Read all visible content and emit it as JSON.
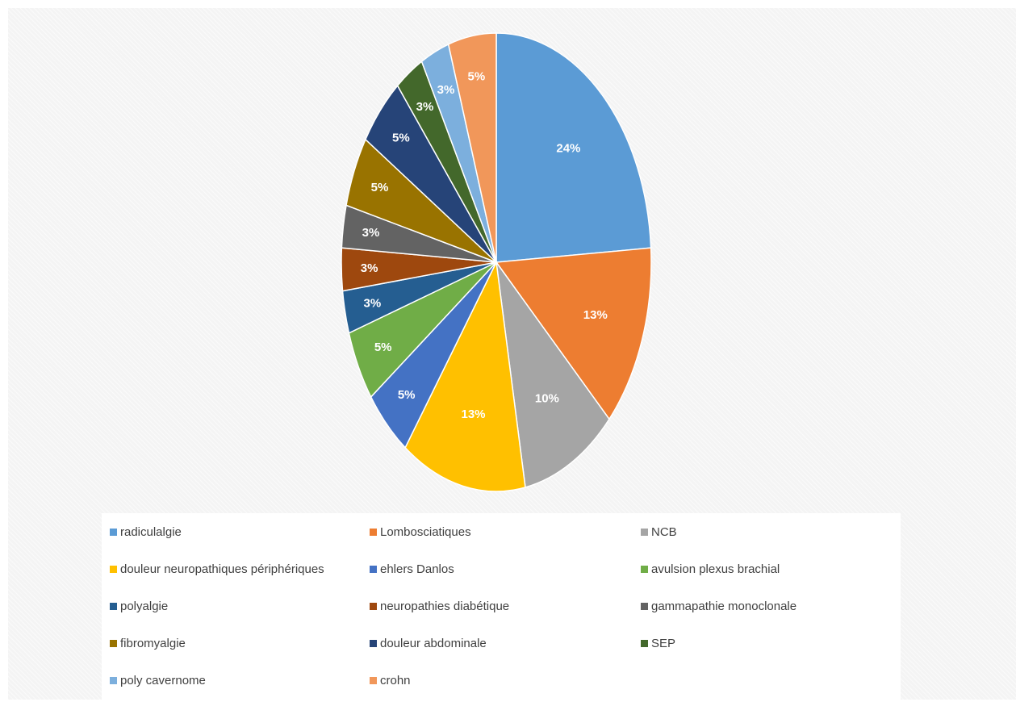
{
  "chart_data": {
    "type": "pie",
    "title": "",
    "start": "top, clockwise",
    "legend_position": "bottom",
    "slices": [
      {
        "label": "radiculalgie",
        "value": 24,
        "display": "24%",
        "color": "#5b9bd5"
      },
      {
        "label": "Lombosciatiques",
        "value": 13,
        "display": "13%",
        "color": "#ed7d31"
      },
      {
        "label": "NCB",
        "value": 10,
        "display": "10%",
        "color": "#a5a5a5"
      },
      {
        "label": "douleur  neuropathiques périphériques",
        "value": 13,
        "display": "13%",
        "color": "#ffc000"
      },
      {
        "label": "ehlers Danlos",
        "value": 5,
        "display": "5%",
        "color": "#4472c4"
      },
      {
        "label": "avulsion plexus brachial",
        "value": 5,
        "display": "5%",
        "color": "#70ad47"
      },
      {
        "label": "polyalgie",
        "value": 3,
        "display": "3%",
        "color": "#255e91"
      },
      {
        "label": "neuropathies diabétique",
        "value": 3,
        "display": "3%",
        "color": "#9e480e"
      },
      {
        "label": "gammapathie monoclonale",
        "value": 3,
        "display": "3%",
        "color": "#636363"
      },
      {
        "label": "fibromyalgie",
        "value": 5,
        "display": "5%",
        "color": "#997300"
      },
      {
        "label": "douleur abdominale",
        "value": 5,
        "display": "5%",
        "color": "#264478"
      },
      {
        "label": "SEP",
        "value": 3,
        "display": "3%",
        "color": "#43682b"
      },
      {
        "label": "poly cavernome",
        "value": 3,
        "display": "3%",
        "color": "#7cafdd"
      },
      {
        "label": "crohn",
        "value": 5,
        "display": "5%",
        "color": "#f1975a"
      }
    ]
  }
}
